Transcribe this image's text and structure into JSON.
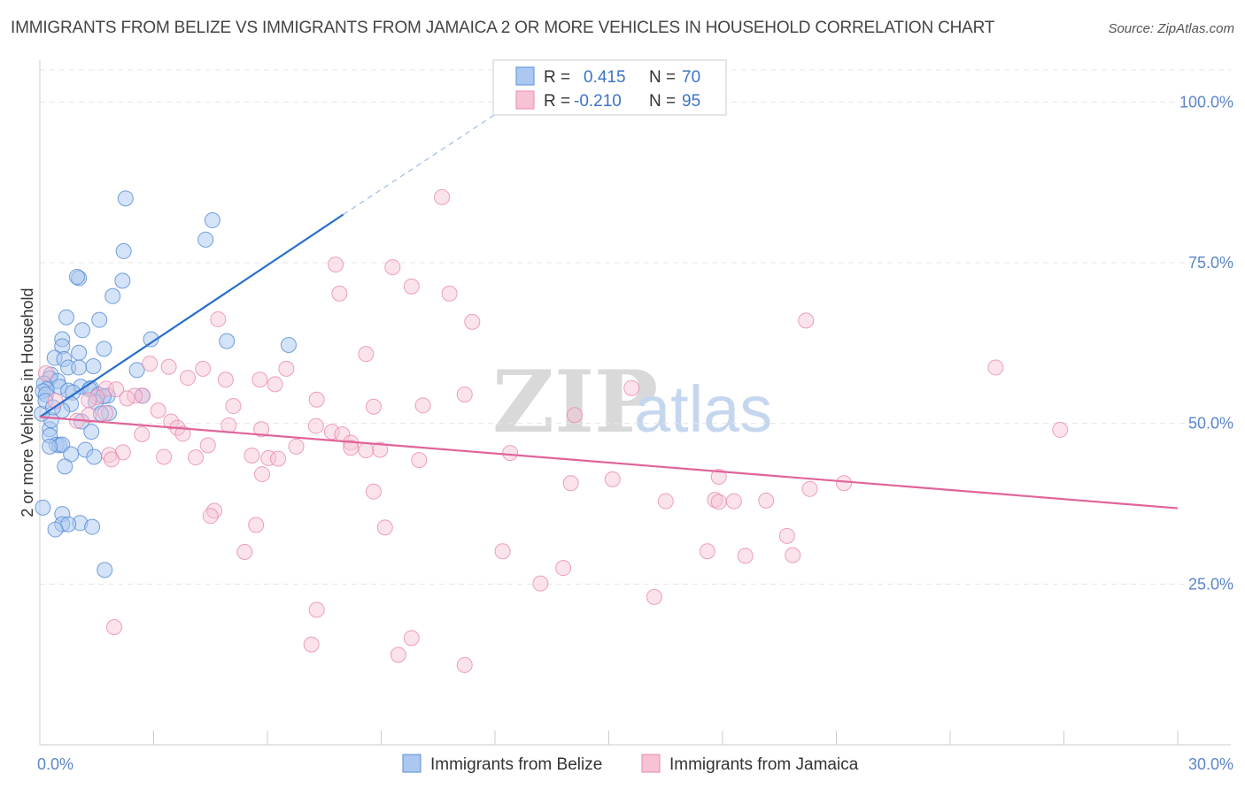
{
  "title": "IMMIGRANTS FROM BELIZE VS IMMIGRANTS FROM JAMAICA 2 OR MORE VEHICLES IN HOUSEHOLD CORRELATION CHART",
  "source": "Source: ZipAtlas.com",
  "watermark": {
    "zip": "ZIP",
    "atlas": "atlas"
  },
  "colors": {
    "belize_fill": "#aac8f0",
    "belize_stroke": "#5b8fd6",
    "belize_line": "#2a6fce",
    "jamaica_fill": "#f6c2d4",
    "jamaica_stroke": "#e88aab",
    "jamaica_line": "#e0649a",
    "grid": "#e6e6e6",
    "tick_text": "#5b86c9"
  },
  "stats": {
    "r_label": "R =",
    "n_label": "N =",
    "belize": {
      "r": "0.415",
      "n": "70"
    },
    "jamaica": {
      "r": "-0.210",
      "n": "95"
    }
  },
  "legend": {
    "belize": "Immigrants from Belize",
    "jamaica": "Immigrants from Jamaica"
  },
  "chart_data": {
    "type": "scatter",
    "title": "IMMIGRANTS FROM BELIZE VS IMMIGRANTS FROM JAMAICA 2 OR MORE VEHICLES IN HOUSEHOLD CORRELATION CHART",
    "xlabel": "",
    "ylabel": "2 or more Vehicles in Household",
    "xlim": [
      0,
      30
    ],
    "ylim": [
      0,
      105
    ],
    "x_tick_labels": [
      {
        "value": 0,
        "label": "0.0%"
      },
      {
        "value": 30,
        "label": "30.0%"
      }
    ],
    "x_tick_marks": [
      0,
      3,
      6,
      9,
      12,
      15,
      18,
      21,
      24,
      27,
      30
    ],
    "y_ticks": [
      {
        "value": 25,
        "label": "25.0%"
      },
      {
        "value": 50,
        "label": "50.0%"
      },
      {
        "value": 75,
        "label": "75.0%"
      },
      {
        "value": 100,
        "label": "100.0%"
      }
    ],
    "series": [
      {
        "name": "Immigrants from Belize",
        "r": 0.415,
        "n": 70,
        "trend": {
          "x0": 0,
          "y0": 51,
          "x1": 8.0,
          "y1": 82.5,
          "dashed_to_x": 12.5,
          "dashed_to_y": 100
        },
        "points": [
          [
            2.26,
            85.0
          ],
          [
            4.55,
            81.6
          ],
          [
            2.21,
            76.8
          ],
          [
            4.37,
            78.6
          ],
          [
            1.03,
            72.6
          ],
          [
            2.18,
            72.2
          ],
          [
            0.98,
            72.8
          ],
          [
            1.92,
            69.8
          ],
          [
            0.7,
            66.5
          ],
          [
            1.57,
            66.1
          ],
          [
            1.12,
            64.5
          ],
          [
            2.93,
            63.1
          ],
          [
            0.59,
            63.1
          ],
          [
            4.93,
            62.8
          ],
          [
            6.56,
            62.2
          ],
          [
            0.59,
            62.0
          ],
          [
            1.69,
            61.6
          ],
          [
            1.03,
            61.0
          ],
          [
            0.39,
            60.2
          ],
          [
            0.64,
            60.0
          ],
          [
            1.41,
            58.9
          ],
          [
            0.75,
            58.7
          ],
          [
            1.03,
            58.7
          ],
          [
            2.56,
            58.3
          ],
          [
            0.29,
            57.6
          ],
          [
            0.26,
            57.0
          ],
          [
            0.47,
            56.6
          ],
          [
            0.11,
            56.2
          ],
          [
            1.08,
            55.7
          ],
          [
            0.52,
            55.7
          ],
          [
            1.35,
            55.5
          ],
          [
            0.75,
            55.1
          ],
          [
            1.31,
            55.3
          ],
          [
            0.18,
            55.3
          ],
          [
            0.08,
            55.0
          ],
          [
            0.87,
            54.8
          ],
          [
            1.55,
            54.5
          ],
          [
            1.79,
            54.3
          ],
          [
            0.16,
            54.5
          ],
          [
            1.68,
            54.2
          ],
          [
            2.7,
            54.3
          ],
          [
            1.47,
            53.3
          ],
          [
            0.82,
            53.0
          ],
          [
            0.59,
            52.0
          ],
          [
            1.82,
            51.6
          ],
          [
            1.61,
            51.5
          ],
          [
            1.1,
            50.3
          ],
          [
            0.26,
            49.1
          ],
          [
            1.36,
            48.7
          ],
          [
            0.26,
            48.1
          ],
          [
            0.44,
            46.7
          ],
          [
            0.52,
            46.6
          ],
          [
            0.59,
            46.7
          ],
          [
            0.26,
            46.4
          ],
          [
            1.2,
            45.9
          ],
          [
            0.82,
            45.2
          ],
          [
            1.43,
            44.8
          ],
          [
            0.66,
            43.3
          ],
          [
            0.08,
            36.9
          ],
          [
            0.59,
            35.9
          ],
          [
            1.06,
            34.5
          ],
          [
            0.59,
            34.3
          ],
          [
            0.75,
            34.3
          ],
          [
            1.38,
            33.9
          ],
          [
            0.41,
            33.5
          ],
          [
            1.71,
            27.2
          ],
          [
            0.3,
            50.5
          ],
          [
            0.05,
            51.5
          ],
          [
            0.15,
            53.5
          ],
          [
            0.35,
            52.5
          ]
        ]
      },
      {
        "name": "Immigrants from Jamaica",
        "r": -0.21,
        "n": 95,
        "trend": {
          "x0": 0,
          "y0": 51.0,
          "x1": 30,
          "y1": 36.8
        },
        "points": [
          [
            10.6,
            85.2
          ],
          [
            7.8,
            74.7
          ],
          [
            9.3,
            74.3
          ],
          [
            9.8,
            71.3
          ],
          [
            10.8,
            70.2
          ],
          [
            7.9,
            70.2
          ],
          [
            11.4,
            65.8
          ],
          [
            20.2,
            66.0
          ],
          [
            4.7,
            66.2
          ],
          [
            8.6,
            60.8
          ],
          [
            2.9,
            59.3
          ],
          [
            3.4,
            58.8
          ],
          [
            6.5,
            58.5
          ],
          [
            4.3,
            58.5
          ],
          [
            25.2,
            58.7
          ],
          [
            0.16,
            57.8
          ],
          [
            3.9,
            57.1
          ],
          [
            5.8,
            56.8
          ],
          [
            4.9,
            56.8
          ],
          [
            6.2,
            56.1
          ],
          [
            15.6,
            55.5
          ],
          [
            1.75,
            55.4
          ],
          [
            2.01,
            55.3
          ],
          [
            2.71,
            54.3
          ],
          [
            2.5,
            54.3
          ],
          [
            11.2,
            54.5
          ],
          [
            1.5,
            54.1
          ],
          [
            2.3,
            53.9
          ],
          [
            0.41,
            53.5
          ],
          [
            7.3,
            53.7
          ],
          [
            1.29,
            53.6
          ],
          [
            10.1,
            52.8
          ],
          [
            8.8,
            52.6
          ],
          [
            5.1,
            52.7
          ],
          [
            3.12,
            52.0
          ],
          [
            1.29,
            51.3
          ],
          [
            14.1,
            51.3
          ],
          [
            1.73,
            51.6
          ],
          [
            0.98,
            50.4
          ],
          [
            3.46,
            50.3
          ],
          [
            4.98,
            49.7
          ],
          [
            7.28,
            49.6
          ],
          [
            5.84,
            49.1
          ],
          [
            3.63,
            49.3
          ],
          [
            7.7,
            48.7
          ],
          [
            7.97,
            48.3
          ],
          [
            3.77,
            48.4
          ],
          [
            2.69,
            48.3
          ],
          [
            26.9,
            49.0
          ],
          [
            8.2,
            47.0
          ],
          [
            4.43,
            46.6
          ],
          [
            6.76,
            46.4
          ],
          [
            8.2,
            46.2
          ],
          [
            8.6,
            45.8
          ],
          [
            2.19,
            45.5
          ],
          [
            12.4,
            45.4
          ],
          [
            1.83,
            45.1
          ],
          [
            5.59,
            45.0
          ],
          [
            8.97,
            45.9
          ],
          [
            3.27,
            44.8
          ],
          [
            4.11,
            44.7
          ],
          [
            6.03,
            44.6
          ],
          [
            10.0,
            44.3
          ],
          [
            6.28,
            44.5
          ],
          [
            1.89,
            44.4
          ],
          [
            5.86,
            42.1
          ],
          [
            15.1,
            41.3
          ],
          [
            17.9,
            41.7
          ],
          [
            14.0,
            40.7
          ],
          [
            21.2,
            40.7
          ],
          [
            8.8,
            39.4
          ],
          [
            17.8,
            38.1
          ],
          [
            18.3,
            37.9
          ],
          [
            17.9,
            37.8
          ],
          [
            16.5,
            37.9
          ],
          [
            19.15,
            38.0
          ],
          [
            20.3,
            39.8
          ],
          [
            4.6,
            36.4
          ],
          [
            4.5,
            35.6
          ],
          [
            5.7,
            34.2
          ],
          [
            9.1,
            33.8
          ],
          [
            19.7,
            32.5
          ],
          [
            12.2,
            30.1
          ],
          [
            17.6,
            30.1
          ],
          [
            5.4,
            30.0
          ],
          [
            19.85,
            29.5
          ],
          [
            18.6,
            29.4
          ],
          [
            13.8,
            27.5
          ],
          [
            13.2,
            25.1
          ],
          [
            16.2,
            23.0
          ],
          [
            7.3,
            21.0
          ],
          [
            1.96,
            18.3
          ],
          [
            9.8,
            16.6
          ],
          [
            7.16,
            15.6
          ],
          [
            9.45,
            14.0
          ],
          [
            11.2,
            12.4
          ]
        ]
      }
    ]
  }
}
